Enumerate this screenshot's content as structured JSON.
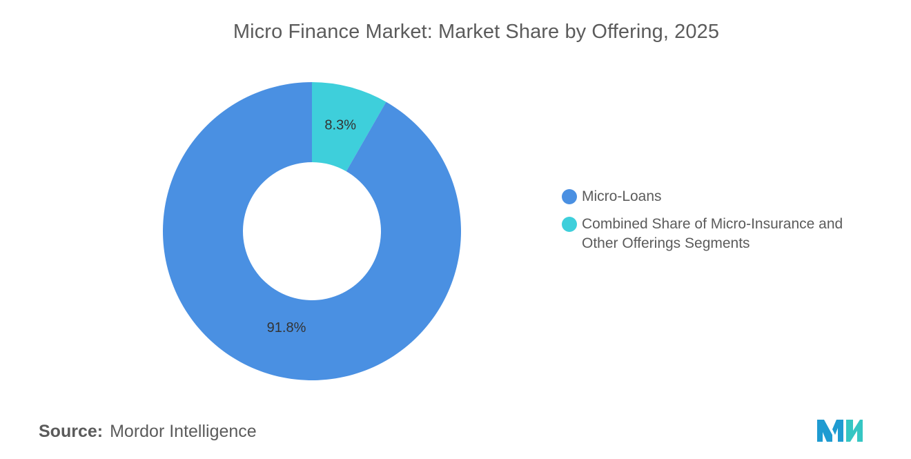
{
  "chart_data": {
    "type": "pie",
    "title": "Micro Finance Market: Market Share by Offering, 2025",
    "labels": [
      "Micro-Loans",
      "Combined Share of Micro-Insurance and Other Offerings Segments"
    ],
    "values": [
      91.8,
      8.3
    ],
    "value_labels": [
      "91.8%",
      "8.3%"
    ],
    "colors": [
      "#4a90e2",
      "#3ecfdb"
    ],
    "donut": true,
    "legend_position": "right"
  },
  "source": {
    "key": "Source:",
    "value": "Mordor Intelligence"
  },
  "logo": {
    "icon": "mordor-intelligence-logo",
    "colors": [
      "#1f9bd1",
      "#35c6c3"
    ]
  }
}
